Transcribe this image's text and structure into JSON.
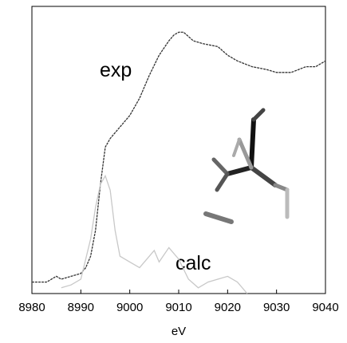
{
  "chart_data": {
    "type": "line",
    "x_label": "eV",
    "annotations": [
      "exp",
      "calc"
    ],
    "xlim": [
      8980,
      9040
    ],
    "xticks": [
      8980,
      8990,
      9000,
      9010,
      9020,
      9030,
      9040
    ],
    "ylim": [
      0,
      1
    ],
    "series": [
      {
        "name": "exp",
        "color": "#333333",
        "x": [
          8980,
          8983,
          8985,
          8986,
          8988,
          8990,
          8991,
          8992,
          8993,
          8994,
          8995,
          8996,
          8998,
          9000,
          9002,
          9004,
          9006,
          9008,
          9009,
          9010,
          9011,
          9013,
          9015,
          9018,
          9020,
          9022,
          9025,
          9028,
          9030,
          9033,
          9036,
          9038,
          9040
        ],
        "values": [
          0.04,
          0.04,
          0.06,
          0.05,
          0.06,
          0.07,
          0.09,
          0.13,
          0.22,
          0.38,
          0.51,
          0.54,
          0.58,
          0.62,
          0.68,
          0.76,
          0.83,
          0.88,
          0.9,
          0.91,
          0.91,
          0.88,
          0.87,
          0.86,
          0.83,
          0.81,
          0.79,
          0.78,
          0.77,
          0.77,
          0.79,
          0.79,
          0.81
        ]
      },
      {
        "name": "calc",
        "color": "#c8c8c8",
        "x": [
          8986,
          8988,
          8990,
          8992,
          8993,
          8994,
          8995,
          8996,
          8997,
          8998,
          9000,
          9002,
          9004,
          9005,
          9006,
          9008,
          9010,
          9012,
          9014,
          9016,
          9018,
          9020,
          9022,
          9024
        ],
        "values": [
          0.02,
          0.03,
          0.05,
          0.19,
          0.3,
          0.38,
          0.41,
          0.36,
          0.22,
          0.13,
          0.11,
          0.09,
          0.13,
          0.15,
          0.11,
          0.16,
          0.12,
          0.05,
          0.02,
          0.04,
          0.05,
          0.06,
          0.04,
          0
        ]
      }
    ]
  }
}
